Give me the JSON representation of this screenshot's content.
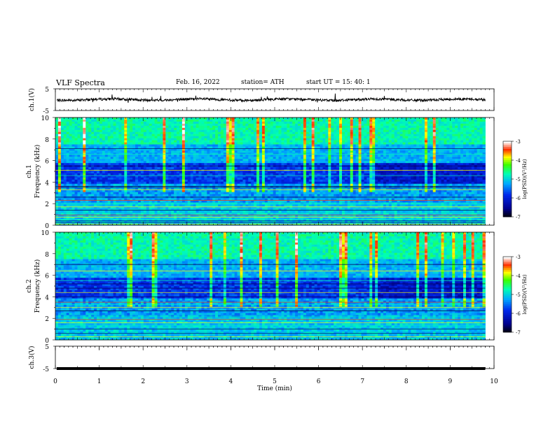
{
  "header": {
    "title": "VLF  Spectra",
    "date": "Feb. 16, 2022",
    "station": "station= ATH",
    "start": "start  UT  =   15: 40: 1"
  },
  "chart_data": [
    {
      "type": "line",
      "panel": "ch1-waveform",
      "ylabel": "ch.1(V)",
      "yticks": [
        "5",
        "-5"
      ],
      "ylim": [
        -5,
        5
      ],
      "xlim": [
        0,
        10
      ],
      "approx_level_v": 0,
      "trace_color": "#000000"
    },
    {
      "type": "heatmap",
      "panel": "ch1-spectrogram",
      "ylabel_top": "ch.1",
      "ylabel": "Frequency  (kHz)",
      "yticks": [
        "0",
        "2",
        "4",
        "6",
        "8",
        "10"
      ],
      "ylim": [
        0,
        10
      ],
      "xlim": [
        0,
        10
      ],
      "data_end_min": 9.8,
      "colorbar": {
        "label": "log(PSD)(V²/Hz)",
        "ticks": [
          "-3",
          "-4",
          "-5",
          "-6",
          "-7"
        ],
        "range": [
          -7,
          -3
        ]
      },
      "regime_change_min": 7.1,
      "bands_khz": [
        0.1,
        0.25,
        0.4,
        0.55,
        0.75,
        0.95,
        1.1,
        1.4,
        1.7,
        2.0,
        2.3,
        2.6,
        3.3,
        3.5,
        3.6,
        4.6,
        5.1,
        5.5,
        6.6,
        7.1
      ]
    },
    {
      "type": "heatmap",
      "panel": "ch2-spectrogram",
      "ylabel_top": "ch.2",
      "ylabel": "Frequency  (kHz)",
      "yticks": [
        "0",
        "2",
        "4",
        "6",
        "8",
        "10"
      ],
      "ylim": [
        0,
        10
      ],
      "xlim": [
        0,
        10
      ],
      "data_end_min": 9.8,
      "colorbar": {
        "label": "log(PSD)(V²/Hz)",
        "ticks": [
          "-3",
          "-4",
          "-5",
          "-6",
          "-7"
        ],
        "range": [
          -7,
          -3
        ]
      },
      "regime_change_min": 7.1,
      "bands_khz": [
        0.3,
        0.6,
        1.0,
        1.3,
        1.6,
        1.9,
        2.2,
        2.7,
        3.0,
        3.3,
        3.5,
        4.0,
        4.4,
        4.8,
        5.2,
        5.5,
        6.4,
        7.0
      ]
    },
    {
      "type": "line",
      "panel": "ch3-waveform",
      "ylabel": "ch.3(V)",
      "yticks": [
        "5",
        "-5"
      ],
      "ylim": [
        -5,
        5
      ],
      "xlim": [
        0,
        10
      ],
      "approx_level_v": -5,
      "xlabel": "Time  (min)",
      "xticks": [
        "0",
        "1",
        "2",
        "3",
        "4",
        "5",
        "6",
        "7",
        "8",
        "9",
        "10"
      ],
      "trace_color": "#000000"
    }
  ]
}
